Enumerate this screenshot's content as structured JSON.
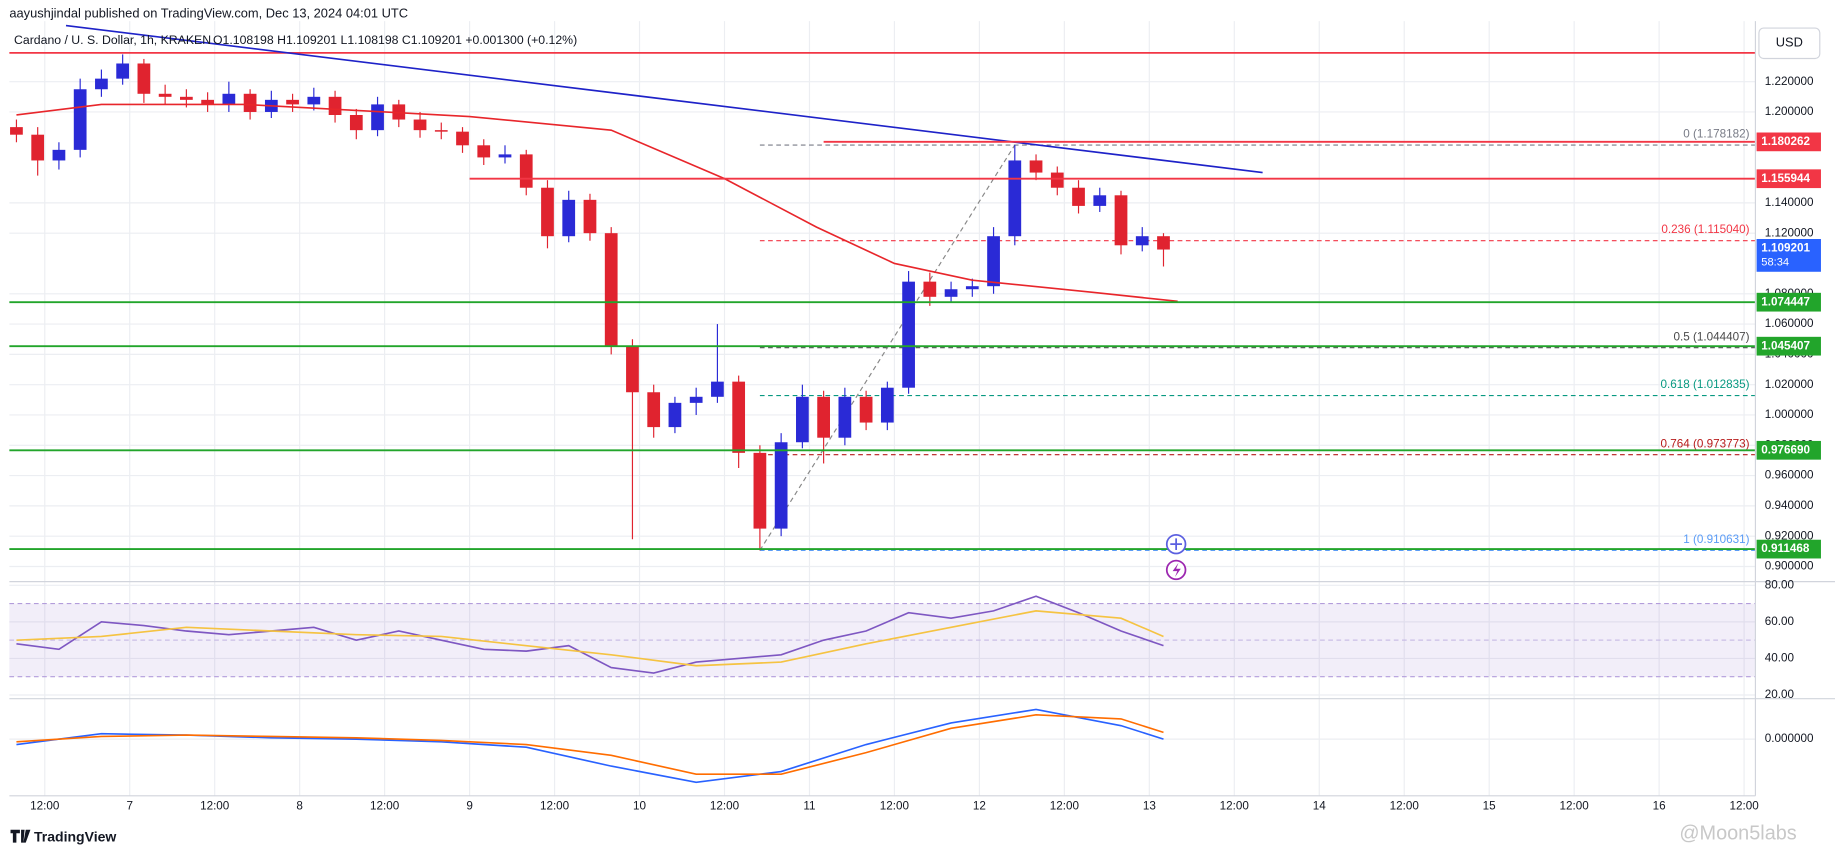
{
  "header": {
    "published": "aayushjindal published on TradingView.com, Dec 13, 2024 04:01 UTC"
  },
  "legend": {
    "symbol": "Cardano / U. S. Dollar, 1h, KRAKEN",
    "ohlc": "O1.108198 H1.109201 L1.108198 C1.109201 +0.001300 (+0.12%)"
  },
  "currency": "USD",
  "footer": {
    "brand": "TradingView",
    "watermark": "@Moon5labs"
  },
  "chart_data": [
    {
      "type": "candlestick",
      "up_color": "#2a2ad6",
      "down_color": "#e0232f",
      "x": [
        8,
        11,
        14,
        17,
        20,
        23,
        26,
        29,
        32,
        35,
        38,
        41,
        44,
        47,
        50,
        53,
        56,
        59,
        62,
        65,
        68,
        71,
        74,
        77,
        80,
        83,
        86,
        89,
        92,
        95,
        98,
        101,
        104,
        107,
        110,
        113,
        116,
        119,
        122,
        125,
        128,
        131,
        134,
        137,
        140,
        143,
        146,
        149,
        152,
        155,
        158,
        161,
        164,
        167,
        170
      ],
      "open": [
        1.19,
        1.185,
        1.168,
        1.175,
        1.215,
        1.222,
        1.232,
        1.212,
        1.21,
        1.208,
        1.205,
        1.212,
        1.2,
        1.208,
        1.205,
        1.21,
        1.198,
        1.188,
        1.205,
        1.195,
        1.188,
        1.187,
        1.178,
        1.17,
        1.172,
        1.15,
        1.118,
        1.142,
        1.12,
        1.045,
        1.015,
        0.992,
        1.008,
        1.012,
        1.022,
        0.975,
        0.925,
        0.982,
        1.012,
        0.985,
        1.012,
        0.995,
        1.018,
        1.088,
        1.078,
        1.083,
        1.085,
        1.118,
        1.168,
        1.16,
        1.15,
        1.138,
        1.145,
        1.112,
        1.118
      ],
      "high": [
        1.195,
        1.19,
        1.18,
        1.222,
        1.228,
        1.238,
        1.235,
        1.218,
        1.215,
        1.213,
        1.22,
        1.215,
        1.214,
        1.212,
        1.216,
        1.214,
        1.202,
        1.21,
        1.208,
        1.2,
        1.193,
        1.19,
        1.182,
        1.178,
        1.175,
        1.155,
        1.148,
        1.146,
        1.124,
        1.05,
        1.02,
        1.012,
        1.018,
        1.06,
        1.026,
        0.98,
        0.988,
        1.02,
        1.016,
        1.018,
        1.016,
        1.022,
        1.095,
        1.094,
        1.088,
        1.09,
        1.124,
        1.178182,
        1.172,
        1.164,
        1.155,
        1.15,
        1.148,
        1.124,
        1.12
      ],
      "low": [
        1.18,
        1.158,
        1.162,
        1.17,
        1.21,
        1.218,
        1.206,
        1.205,
        1.203,
        1.2,
        1.2,
        1.195,
        1.196,
        1.2,
        1.201,
        1.193,
        1.182,
        1.184,
        1.19,
        1.183,
        1.182,
        1.173,
        1.165,
        1.166,
        1.145,
        1.11,
        1.114,
        1.115,
        1.04,
        0.918,
        0.985,
        0.988,
        1.0,
        1.008,
        0.965,
        0.910631,
        0.92,
        0.978,
        0.968,
        0.98,
        0.99,
        0.99,
        1.014,
        1.072,
        1.074,
        1.078,
        1.08,
        1.112,
        1.155,
        1.145,
        1.133,
        1.134,
        1.106,
        1.108,
        1.098
      ],
      "close": [
        1.185,
        1.168,
        1.175,
        1.215,
        1.222,
        1.232,
        1.212,
        1.21,
        1.208,
        1.205,
        1.212,
        1.2,
        1.208,
        1.205,
        1.21,
        1.198,
        1.188,
        1.205,
        1.195,
        1.188,
        1.187,
        1.178,
        1.17,
        1.172,
        1.15,
        1.118,
        1.142,
        1.12,
        1.045,
        1.015,
        0.992,
        1.008,
        1.012,
        1.022,
        0.975,
        0.925,
        0.982,
        1.012,
        0.985,
        1.012,
        0.995,
        1.018,
        1.088,
        1.078,
        1.083,
        1.085,
        1.118,
        1.168,
        1.16,
        1.15,
        1.138,
        1.145,
        1.112,
        1.118,
        1.109201
      ],
      "xlim": [
        7,
        253.6
      ],
      "xticks": [
        {
          "value": 12,
          "label": "12:00"
        },
        {
          "value": 24,
          "label": "7"
        },
        {
          "value": 36,
          "label": "12:00"
        },
        {
          "value": 48,
          "label": "8"
        },
        {
          "value": 60,
          "label": "12:00"
        },
        {
          "value": 72,
          "label": "9"
        },
        {
          "value": 84,
          "label": "12:00"
        },
        {
          "value": 96,
          "label": "10"
        },
        {
          "value": 108,
          "label": "12:00"
        },
        {
          "value": 120,
          "label": "11"
        },
        {
          "value": 132,
          "label": "12:00"
        },
        {
          "value": 144,
          "label": "12"
        },
        {
          "value": 156,
          "label": "12:00"
        },
        {
          "value": 168,
          "label": "13"
        },
        {
          "value": 180,
          "label": "12:00"
        },
        {
          "value": 192,
          "label": "14"
        },
        {
          "value": 204,
          "label": "12:00"
        },
        {
          "value": 216,
          "label": "15"
        },
        {
          "value": 228,
          "label": "12:00"
        },
        {
          "value": 240,
          "label": "16"
        },
        {
          "value": 252,
          "label": "12:00"
        }
      ],
      "ylim": [
        0.89,
        1.26
      ],
      "yticks": [
        {
          "value": 1.22,
          "label": "1.220000"
        },
        {
          "value": 1.2,
          "label": "1.200000"
        },
        {
          "value": 1.14,
          "label": "1.140000"
        },
        {
          "value": 1.12,
          "label": "1.120000"
        },
        {
          "value": 1.08,
          "label": "1.080000"
        },
        {
          "value": 1.06,
          "label": "1.060000"
        },
        {
          "value": 1.04,
          "label": "1.040000"
        },
        {
          "value": 1.02,
          "label": "1.020000"
        },
        {
          "value": 1,
          "label": "1.000000"
        },
        {
          "value": 0.98,
          "label": "0.980000"
        },
        {
          "value": 0.96,
          "label": "0.960000"
        },
        {
          "value": 0.94,
          "label": "0.940000"
        },
        {
          "value": 0.92,
          "label": "0.920000"
        },
        {
          "value": 0.9,
          "label": "0.900000"
        }
      ],
      "grid": true,
      "lines": [
        {
          "value": 1.239,
          "color": "#f23645"
        }
      ],
      "levels": [
        {
          "value": 1.180262,
          "color": "#f23645",
          "x0": 122
        },
        {
          "value": 1.155944,
          "color": "#f23645",
          "x0": 72
        },
        {
          "value": 1.074447,
          "color": "#22a52b"
        },
        {
          "value": 1.045407,
          "color": "#22a52b"
        },
        {
          "value": {
            "value": 0.97669,
            "label": "0.976690"
          },
          "color": "#22a52b"
        },
        {
          "value": 0.911468,
          "color": "#22a52b"
        }
      ],
      "last_price": {
        "value": 1.109201,
        "countdown": "58:34",
        "color": "#2962ff"
      },
      "fib": {
        "x0": 113,
        "x1": 149,
        "levels": [
          {
            "value": 1.178182,
            "label": "0 (1.178182)",
            "color": "#787b86"
          },
          {
            "value": 1.11504,
            "label": "0.236 (1.115040)",
            "color": "#f23645"
          },
          {
            "value": 1.044407,
            "label": "0.5 (1.044407)",
            "color": "#4a4a4a"
          },
          {
            "value": 1.012835,
            "label": "0.618 (1.012835)",
            "color": "#089981"
          },
          {
            "value": 0.973773,
            "label": "0.764 (0.973773)",
            "color": "#b71c1c"
          },
          {
            "value": 0.910631,
            "label": "1 (0.910631)",
            "color": "#5b9cf6"
          }
        ]
      },
      "series": [
        {
          "color": "#e8262b",
          "x": [
            8,
            20,
            40,
            60,
            72,
            92,
            108,
            121,
            132,
            143,
            160,
            172
          ],
          "values": [
            1.198,
            1.205,
            1.205,
            1.2,
            1.197,
            1.188,
            1.156,
            1.124,
            1.1,
            1.089,
            1.081,
            1.075
          ]
        },
        {
          "color": "#1e22c8",
          "x": [
            15,
            184
          ],
          "values": [
            1.257,
            1.16
          ]
        }
      ]
    },
    {
      "type": "line",
      "ylim": [
        18,
        82
      ],
      "yticks": [
        {
          "value": 80,
          "label": "80.00"
        },
        {
          "value": 60,
          "label": "60.00"
        },
        {
          "value": 40,
          "label": "40.00"
        },
        {
          "value": 20,
          "label": "20.00"
        }
      ],
      "band": [
        30,
        70
      ],
      "midline": 50,
      "series": [
        {
          "color": "#7e57c2",
          "x": [
            8,
            14,
            20,
            26,
            32,
            38,
            44,
            50,
            56,
            62,
            68,
            74,
            80,
            86,
            92,
            98,
            104,
            110,
            116,
            122,
            128,
            134,
            140,
            146,
            152,
            158,
            164,
            170
          ],
          "values": [
            48,
            45,
            60,
            58,
            55,
            53,
            55,
            57,
            50,
            55,
            50,
            45,
            44,
            47,
            35,
            32,
            38,
            40,
            42,
            50,
            55,
            65,
            62,
            66,
            74,
            65,
            55,
            47
          ]
        },
        {
          "color": "#f5c342",
          "x": [
            8,
            20,
            32,
            44,
            56,
            68,
            80,
            92,
            104,
            116,
            128,
            140,
            152,
            164,
            170
          ],
          "values": [
            50,
            52,
            57,
            55,
            53,
            52,
            47,
            42,
            36,
            38,
            48,
            57,
            66,
            62,
            52
          ]
        }
      ]
    },
    {
      "type": "line",
      "ylim": [
        -0.042,
        0.03
      ],
      "yticks": [
        {
          "value": 0,
          "label": "0.000000"
        }
      ],
      "series": [
        {
          "color": "#2962ff",
          "x": [
            8,
            20,
            32,
            44,
            56,
            68,
            80,
            92,
            104,
            116,
            128,
            140,
            152,
            164,
            170
          ],
          "values": [
            -0.004,
            0.004,
            0.003,
            0.001,
            0,
            -0.002,
            -0.006,
            -0.02,
            -0.032,
            -0.024,
            -0.004,
            0.012,
            0.022,
            0.01,
            0
          ]
        },
        {
          "color": "#ff6d00",
          "x": [
            8,
            20,
            32,
            44,
            56,
            68,
            80,
            92,
            104,
            116,
            128,
            140,
            152,
            164,
            170
          ],
          "values": [
            -0.002,
            0.002,
            0.003,
            0.002,
            0.001,
            -0.001,
            -0.004,
            -0.012,
            -0.026,
            -0.026,
            -0.01,
            0.008,
            0.018,
            0.015,
            0.005
          ]
        }
      ]
    }
  ]
}
